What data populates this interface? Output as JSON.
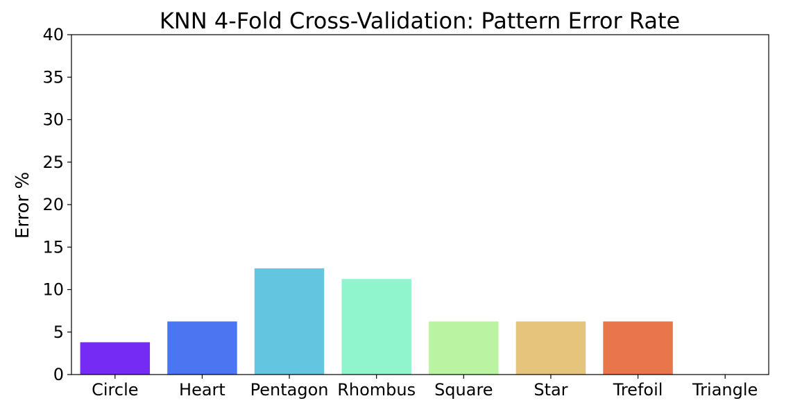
{
  "chart_data": {
    "type": "bar",
    "title": "KNN 4-Fold Cross-Validation: Pattern Error Rate",
    "xlabel": "",
    "ylabel": "Error %",
    "ylim": [
      0,
      40
    ],
    "yticks": [
      "0",
      "5",
      "10",
      "15",
      "20",
      "25",
      "30",
      "35",
      "40"
    ],
    "categories": [
      "Circle",
      "Heart",
      "Pentagon",
      "Rhombus",
      "Square",
      "Star",
      "Trefoil",
      "Triangle"
    ],
    "values": [
      3.8,
      6.25,
      12.5,
      11.25,
      6.25,
      6.25,
      6.25,
      0
    ],
    "colors": [
      "#762bf5",
      "#4b76f2",
      "#64c5e1",
      "#90f4cc",
      "#baf4a2",
      "#e5c57c",
      "#e8764a",
      "#e31a1c"
    ],
    "grid": false,
    "legend": "none"
  }
}
